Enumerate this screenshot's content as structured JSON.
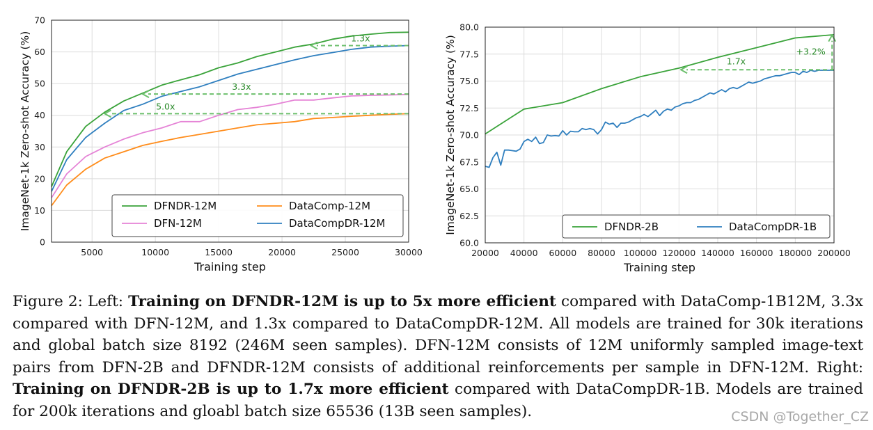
{
  "chart_data": [
    {
      "type": "line",
      "xlabel": "Training step",
      "ylabel": "ImageNet-1k Zero-shot Accuracy (%)",
      "xlim": [
        1800,
        30000
      ],
      "ylim": [
        0,
        70
      ],
      "xticks": [
        5000,
        10000,
        15000,
        20000,
        25000,
        30000
      ],
      "yticks": [
        0,
        10,
        20,
        30,
        40,
        50,
        60,
        70
      ],
      "grid": true,
      "legend_location": "lower-right",
      "series": [
        {
          "name": "DFNDR-12M",
          "color": "#3aa33a",
          "legend_slot": 0,
          "x": [
            1800,
            3000,
            4500,
            6000,
            7500,
            9000,
            10500,
            12000,
            13500,
            15000,
            16500,
            18000,
            19500,
            21000,
            22500,
            24000,
            25500,
            27000,
            28500,
            30000
          ],
          "y": [
            17.5,
            28.5,
            36.5,
            41,
            44.5,
            47,
            49.5,
            51.2,
            52.8,
            55,
            56.5,
            58.5,
            60,
            61.5,
            62.5,
            64,
            65,
            65.6,
            66.1,
            66.2
          ]
        },
        {
          "name": "DFN-12M",
          "color": "#e583d6",
          "legend_slot": 2,
          "x": [
            1800,
            3000,
            4500,
            6000,
            7500,
            9000,
            10500,
            12000,
            13500,
            15000,
            16500,
            18000,
            19500,
            21000,
            22500,
            24000,
            25500,
            27000,
            28500,
            30000
          ],
          "y": [
            14,
            21.5,
            27,
            30,
            32.5,
            34.5,
            36,
            38,
            38,
            40,
            41.8,
            42.5,
            43.5,
            44.8,
            44.8,
            45.5,
            46.1,
            46.3,
            46.4,
            46.6
          ]
        },
        {
          "name": "DataComp-12M",
          "color": "#ff8c1a",
          "legend_slot": 1,
          "x": [
            1800,
            3000,
            4500,
            6000,
            7500,
            9000,
            10500,
            12000,
            13500,
            15000,
            16500,
            18000,
            19500,
            21000,
            22500,
            24000,
            25500,
            27000,
            28500,
            30000
          ],
          "y": [
            11.5,
            18,
            23,
            26.5,
            28.5,
            30.5,
            31.8,
            33,
            34,
            35,
            36,
            37,
            37.5,
            38,
            39,
            39.3,
            39.7,
            40,
            40.3,
            40.5
          ]
        },
        {
          "name": "DataCompDR-12M",
          "color": "#2f7fbf",
          "legend_slot": 3,
          "x": [
            1800,
            3000,
            4500,
            6000,
            7500,
            9000,
            10500,
            12000,
            13500,
            15000,
            16500,
            18000,
            19500,
            21000,
            22500,
            24000,
            25500,
            27000,
            28500,
            30000
          ],
          "y": [
            16,
            26,
            33,
            37.5,
            41.5,
            43.5,
            46,
            47.5,
            49,
            51,
            53,
            54.5,
            56,
            57.5,
            58.8,
            59.8,
            60.8,
            61.5,
            61.8,
            62
          ]
        }
      ],
      "annotations": [
        {
          "text": "1.3x",
          "x_from": 30000,
          "x_to": 22300,
          "y": 62,
          "label_x": 26200,
          "label_y": 64.2
        },
        {
          "text": "3.3x",
          "x_from": 30000,
          "x_to": 9000,
          "y": 46.7,
          "label_x": 16800,
          "label_y": 48.9
        },
        {
          "text": "5.0x",
          "x_from": 30000,
          "x_to": 6000,
          "y": 40.5,
          "label_x": 10800,
          "label_y": 42.7
        }
      ]
    },
    {
      "type": "line",
      "xlabel": "Training step",
      "ylabel": "ImageNet-1k Zero-shot Accuracy (%)",
      "xlim": [
        20000,
        200000
      ],
      "ylim": [
        60,
        80
      ],
      "xticks": [
        20000,
        40000,
        60000,
        80000,
        100000,
        120000,
        140000,
        160000,
        180000,
        200000
      ],
      "yticks": [
        60.0,
        62.5,
        65.0,
        67.5,
        70.0,
        72.5,
        75.0,
        77.5,
        80.0
      ],
      "yticks_labels": [
        "60.0",
        "62.5",
        "65.0",
        "67.5",
        "70.0",
        "72.5",
        "75.0",
        "77.5",
        "80.0"
      ],
      "grid": true,
      "legend_location": "lower-right",
      "series": [
        {
          "name": "DFNDR-2B",
          "color": "#3aa33a",
          "legend_slot": 0,
          "x": [
            20000,
            40000,
            60000,
            80000,
            100000,
            120000,
            140000,
            160000,
            180000,
            200000
          ],
          "y": [
            70.1,
            72.4,
            73,
            74.3,
            75.4,
            76.2,
            77.2,
            78.1,
            79,
            79.3
          ]
        },
        {
          "name": "DataCompDR-1B",
          "color": "#2f7fbf",
          "legend_slot": 1,
          "x": [
            20000,
            22000,
            24000,
            26000,
            28000,
            30000,
            32000,
            34000,
            36000,
            38000,
            40000,
            42000,
            44000,
            46000,
            48000,
            50000,
            52000,
            54000,
            56000,
            58000,
            60000,
            62000,
            64000,
            66000,
            68000,
            70000,
            72000,
            74000,
            76000,
            78000,
            80000,
            82000,
            84000,
            86000,
            88000,
            90000,
            92000,
            94000,
            96000,
            98000,
            100000,
            102000,
            104000,
            106000,
            108000,
            110000,
            112000,
            114000,
            116000,
            118000,
            120000,
            122000,
            124000,
            126000,
            128000,
            130000,
            132000,
            134000,
            136000,
            138000,
            140000,
            142000,
            144000,
            146000,
            148000,
            150000,
            152000,
            154000,
            156000,
            158000,
            160000,
            162000,
            164000,
            166000,
            168000,
            170000,
            172000,
            174000,
            176000,
            178000,
            180000,
            182000,
            184000,
            186000,
            188000,
            190000,
            192000,
            194000,
            196000,
            198000,
            200000
          ],
          "y": [
            67.1,
            67,
            67.9,
            68.4,
            67.2,
            68.6,
            68.6,
            68.55,
            68.5,
            68.7,
            69.4,
            69.6,
            69.4,
            69.8,
            69.2,
            69.3,
            70.0,
            69.9,
            69.95,
            69.9,
            70.4,
            70.0,
            70.35,
            70.3,
            70.3,
            70.6,
            70.5,
            70.6,
            70.5,
            70.1,
            70.5,
            71.2,
            71.0,
            71.1,
            70.7,
            71.1,
            71.1,
            71.2,
            71.4,
            71.6,
            71.7,
            71.9,
            71.7,
            72.0,
            72.3,
            71.8,
            72.2,
            72.4,
            72.3,
            72.6,
            72.7,
            72.9,
            73.0,
            73.0,
            73.2,
            73.3,
            73.5,
            73.7,
            73.9,
            73.8,
            74.0,
            74.2,
            74.0,
            74.3,
            74.4,
            74.3,
            74.5,
            74.7,
            74.9,
            74.8,
            74.9,
            75.0,
            75.2,
            75.3,
            75.4,
            75.5,
            75.5,
            75.6,
            75.7,
            75.8,
            75.8,
            75.6,
            75.9,
            75.8,
            76.0,
            75.9,
            76.0,
            76.0,
            76.0,
            76.0,
            76.0
          ]
        }
      ],
      "annotations": [
        {
          "text": "1.7x",
          "x_from": 200000,
          "x_to": 121000,
          "y": 76.05,
          "label_x": 149500,
          "label_y": 76.8
        },
        {
          "text": "+3.2%",
          "vertical": true,
          "x": 199000,
          "y_from": 76.05,
          "y_to": 79.25,
          "label_x": 188000,
          "label_y": 77.7
        }
      ]
    }
  ],
  "caption": {
    "parts": [
      {
        "text": "Figure 2: Left: ",
        "bold": false
      },
      {
        "text": "Training on DFNDR-12M is up to 5x more efficient",
        "bold": true
      },
      {
        "text": " compared with DataComp-1B12M, 3.3x compared with DFN-12M, and 1.3x compared to DataCompDR-12M. All models are trained for 30k iterations and global batch size 8192 (246M seen samples). DFN-12M consists of 12M uniformly sampled image-text pairs from DFN-2B and DFNDR-12M consists of additional reinforcements per sample in DFN-12M. Right: ",
        "bold": false
      },
      {
        "text": "Training on DFNDR-2B is up to 1.7x more efficient",
        "bold": true
      },
      {
        "text": " compared with DataCompDR-1B. Models are trained for 200k iterations and gloabl batch size 65536 (13B seen samples).",
        "bold": false
      }
    ]
  },
  "watermark": "CSDN @Together_CZ",
  "colors": {
    "annotation": "#6cbf6c",
    "grid": "#dcdcdc",
    "frame": "#222222"
  }
}
